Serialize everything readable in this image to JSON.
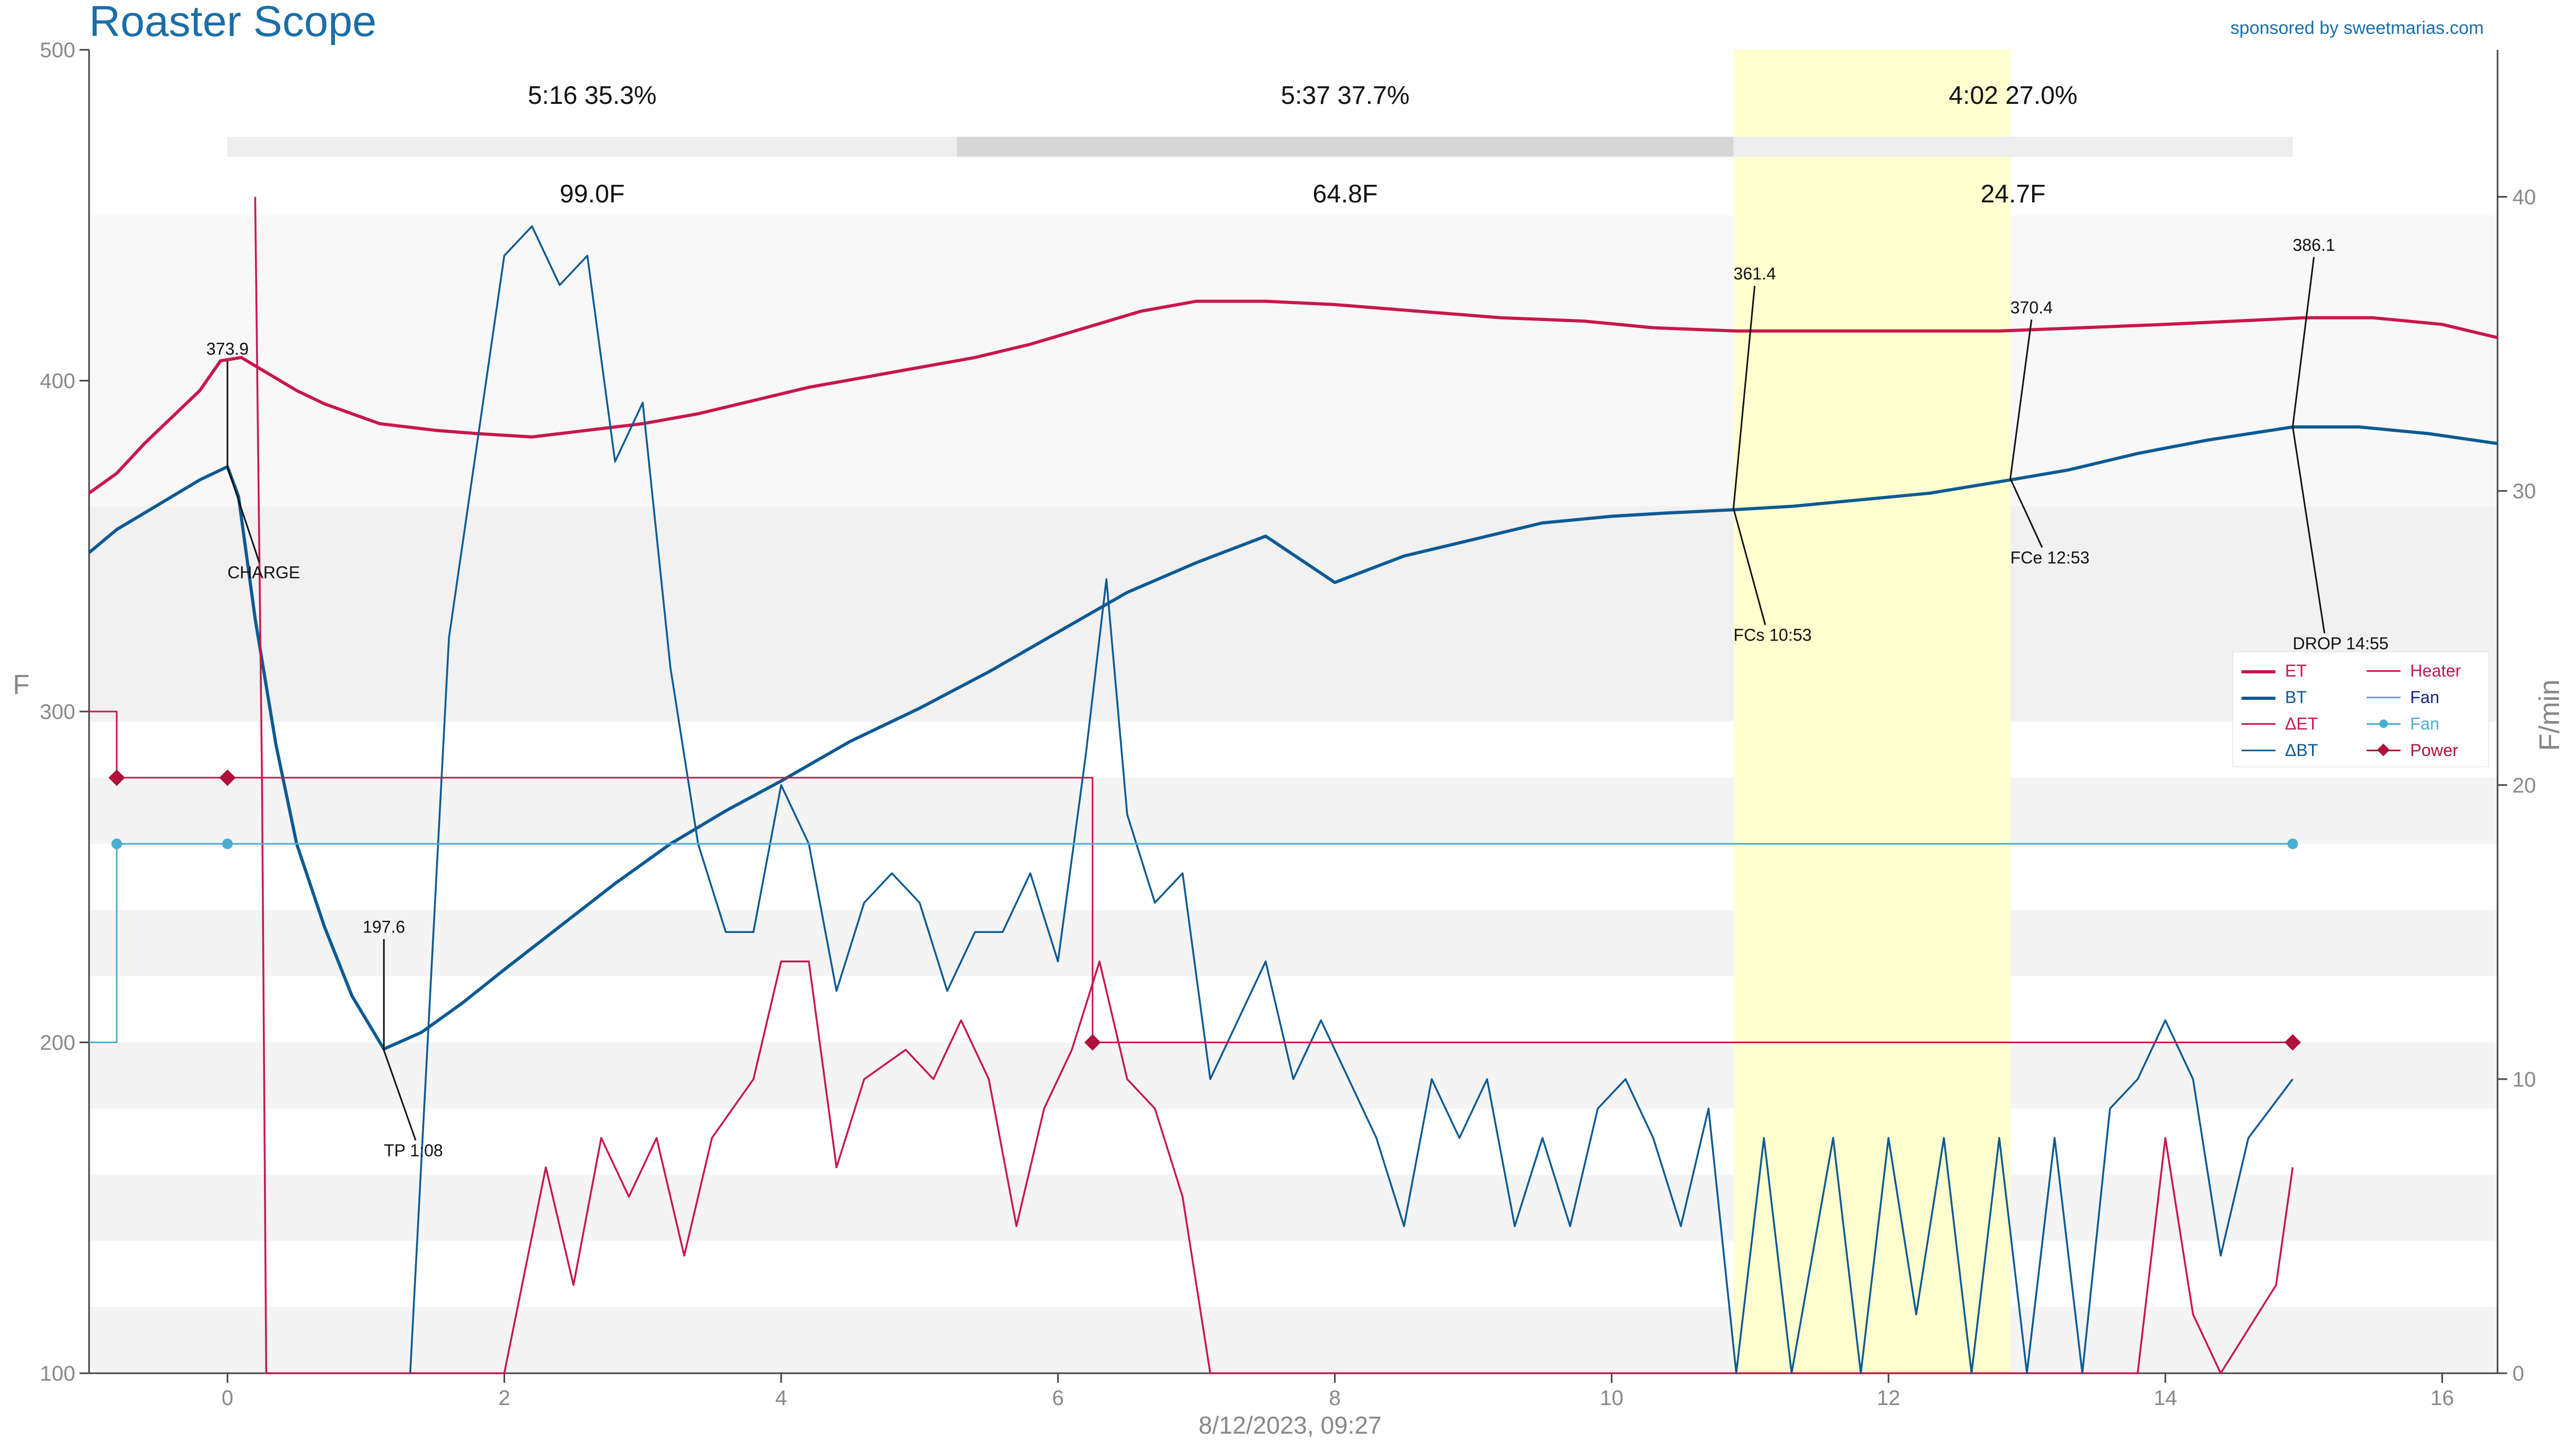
{
  "header": {
    "title": "Roaster Scope",
    "sponsor": "sponsored by sweetmarias.com"
  },
  "chart_data": {
    "type": "line",
    "xlabel": "8/12/2023, 09:27",
    "ylabel": "F",
    "y2label": "F/min",
    "xlim": [
      -1,
      16.4
    ],
    "ylim": [
      100,
      500
    ],
    "y2lim": [
      0,
      45
    ],
    "x_ticks": [
      0,
      2,
      4,
      6,
      8,
      10,
      12,
      14,
      16
    ],
    "y_ticks": [
      100,
      200,
      300,
      400,
      500
    ],
    "y2_ticks": [
      0,
      10,
      20,
      30,
      40
    ],
    "grid": false,
    "legend_position": "right",
    "colors": {
      "ET": "#c8174d",
      "BT": "#0c5a93",
      "dET": "#c8174d",
      "dBT": "#0c5a93",
      "Heater": "#c8174d",
      "Fan": "#4aaecf",
      "Power": "#b0103c",
      "fc_band": "#ffffcc"
    },
    "phases": [
      {
        "label": "5:16  35.3%",
        "delta": "99.0F",
        "x_start": 0,
        "x_end": 5.27
      },
      {
        "label": "5:37  37.7%",
        "delta": "64.8F",
        "x_start": 5.27,
        "x_end": 10.88
      },
      {
        "label": "4:02  27.0%",
        "delta": "24.7F",
        "x_start": 10.88,
        "x_end": 14.92
      }
    ],
    "first_crack_band": {
      "x_start": 10.88,
      "x_end": 12.88
    },
    "events": [
      {
        "name": "CHARGE",
        "x": 0.0,
        "y": 373.9,
        "value_label": "373.9",
        "event_label": "CHARGE"
      },
      {
        "name": "TP",
        "x": 1.13,
        "y": 197.6,
        "value_label": "197.6",
        "event_label": "TP 1:08"
      },
      {
        "name": "FCs",
        "x": 10.88,
        "y": 361.4,
        "value_label": "361.4",
        "event_label": "FCs 10:53"
      },
      {
        "name": "FCe",
        "x": 12.88,
        "y": 370.4,
        "value_label": "370.4",
        "event_label": "FCe 12:53"
      },
      {
        "name": "DROP",
        "x": 14.92,
        "y": 386.1,
        "value_label": "386.1",
        "event_label": "DROP 14:55"
      }
    ],
    "legend": [
      {
        "name": "ET",
        "key": "ET",
        "style": "line",
        "bold": true
      },
      {
        "name": "BT",
        "key": "BT",
        "style": "line",
        "bold": true
      },
      {
        "name": "ΔET",
        "key": "dET",
        "style": "line",
        "bold": false
      },
      {
        "name": "ΔBT",
        "key": "dBT",
        "style": "line",
        "bold": false
      },
      {
        "name": "Heater",
        "key": "Heater",
        "style": "line",
        "bold": false
      },
      {
        "name": "Fan",
        "key": "Fan",
        "style": "line",
        "bold": false
      },
      {
        "name": "Fan",
        "key": "Fan",
        "style": "dot",
        "bold": false
      },
      {
        "name": "Power",
        "key": "Power",
        "style": "diamond",
        "bold": false
      }
    ],
    "series": [
      {
        "name": "ET",
        "axis": "left",
        "points": [
          [
            -1.0,
            366
          ],
          [
            -0.8,
            372
          ],
          [
            -0.6,
            381
          ],
          [
            -0.4,
            389
          ],
          [
            -0.2,
            397
          ],
          [
            -0.05,
            406
          ],
          [
            0.1,
            407
          ],
          [
            0.3,
            402
          ],
          [
            0.5,
            397
          ],
          [
            0.7,
            393
          ],
          [
            0.9,
            390
          ],
          [
            1.1,
            387
          ],
          [
            1.3,
            386
          ],
          [
            1.5,
            385
          ],
          [
            1.8,
            384
          ],
          [
            2.2,
            383
          ],
          [
            2.6,
            385
          ],
          [
            3.0,
            387
          ],
          [
            3.4,
            390
          ],
          [
            3.8,
            394
          ],
          [
            4.2,
            398
          ],
          [
            4.6,
            401
          ],
          [
            5.0,
            404
          ],
          [
            5.4,
            407
          ],
          [
            5.8,
            411
          ],
          [
            6.2,
            416
          ],
          [
            6.6,
            421
          ],
          [
            7.0,
            424
          ],
          [
            7.5,
            424
          ],
          [
            8.0,
            423
          ],
          [
            8.6,
            421
          ],
          [
            9.2,
            419
          ],
          [
            9.8,
            418
          ],
          [
            10.3,
            416
          ],
          [
            10.9,
            415
          ],
          [
            11.5,
            415
          ],
          [
            12.1,
            415
          ],
          [
            12.8,
            415
          ],
          [
            13.4,
            416
          ],
          [
            14.0,
            417
          ],
          [
            14.5,
            418
          ],
          [
            15.0,
            419
          ],
          [
            15.5,
            419
          ],
          [
            16.0,
            417
          ],
          [
            16.4,
            413
          ]
        ]
      },
      {
        "name": "BT",
        "axis": "left",
        "points": [
          [
            -1.0,
            348
          ],
          [
            -0.8,
            355
          ],
          [
            -0.6,
            360
          ],
          [
            -0.4,
            365
          ],
          [
            -0.2,
            370
          ],
          [
            0.0,
            374
          ],
          [
            0.08,
            365
          ],
          [
            0.2,
            328
          ],
          [
            0.35,
            290
          ],
          [
            0.5,
            260
          ],
          [
            0.7,
            235
          ],
          [
            0.9,
            214
          ],
          [
            1.13,
            198
          ],
          [
            1.4,
            203
          ],
          [
            1.7,
            212
          ],
          [
            2.0,
            222
          ],
          [
            2.4,
            235
          ],
          [
            2.8,
            248
          ],
          [
            3.2,
            260
          ],
          [
            3.6,
            270
          ],
          [
            4.0,
            279
          ],
          [
            4.5,
            291
          ],
          [
            5.0,
            301
          ],
          [
            5.5,
            312
          ],
          [
            6.0,
            324
          ],
          [
            6.5,
            336
          ],
          [
            7.0,
            345
          ],
          [
            7.5,
            353
          ],
          [
            8.0,
            339
          ],
          [
            8.5,
            347
          ],
          [
            9.0,
            352
          ],
          [
            9.5,
            357
          ],
          [
            10.0,
            359
          ],
          [
            10.4,
            360
          ],
          [
            10.88,
            361
          ],
          [
            11.3,
            362
          ],
          [
            11.8,
            364
          ],
          [
            12.3,
            366
          ],
          [
            12.88,
            370
          ],
          [
            13.3,
            373
          ],
          [
            13.8,
            378
          ],
          [
            14.3,
            382
          ],
          [
            14.92,
            386
          ],
          [
            15.4,
            386
          ],
          [
            15.9,
            384
          ],
          [
            16.4,
            381
          ]
        ]
      },
      {
        "name": "ΔET",
        "axis": "right",
        "points": [
          [
            0.2,
            40
          ],
          [
            0.25,
            20
          ],
          [
            0.28,
            0
          ],
          [
            2.0,
            0
          ],
          [
            2.3,
            7
          ],
          [
            2.5,
            3
          ],
          [
            2.7,
            8
          ],
          [
            2.9,
            6
          ],
          [
            3.1,
            8
          ],
          [
            3.3,
            4
          ],
          [
            3.5,
            8
          ],
          [
            3.8,
            10
          ],
          [
            4.0,
            14
          ],
          [
            4.2,
            14
          ],
          [
            4.4,
            7
          ],
          [
            4.6,
            10
          ],
          [
            4.9,
            11
          ],
          [
            5.1,
            10
          ],
          [
            5.3,
            12
          ],
          [
            5.5,
            10
          ],
          [
            5.7,
            5
          ],
          [
            5.9,
            9
          ],
          [
            6.1,
            11
          ],
          [
            6.3,
            14
          ],
          [
            6.5,
            10
          ],
          [
            6.7,
            9
          ],
          [
            6.9,
            6
          ],
          [
            7.1,
            0
          ],
          [
            10.0,
            0
          ],
          [
            13.8,
            0
          ],
          [
            14.0,
            8
          ],
          [
            14.2,
            2
          ],
          [
            14.4,
            0
          ],
          [
            14.8,
            3
          ],
          [
            14.92,
            7
          ]
        ]
      },
      {
        "name": "ΔBT",
        "axis": "right",
        "points": [
          [
            1.32,
            0
          ],
          [
            1.6,
            25
          ],
          [
            2.0,
            38
          ],
          [
            2.2,
            39
          ],
          [
            2.4,
            37
          ],
          [
            2.6,
            38
          ],
          [
            2.8,
            31
          ],
          [
            3.0,
            33
          ],
          [
            3.2,
            24
          ],
          [
            3.4,
            18
          ],
          [
            3.6,
            15
          ],
          [
            3.8,
            15
          ],
          [
            4.0,
            20
          ],
          [
            4.2,
            18
          ],
          [
            4.4,
            13
          ],
          [
            4.6,
            16
          ],
          [
            4.8,
            17
          ],
          [
            5.0,
            16
          ],
          [
            5.2,
            13
          ],
          [
            5.4,
            15
          ],
          [
            5.6,
            15
          ],
          [
            5.8,
            17
          ],
          [
            6.0,
            14
          ],
          [
            6.2,
            21
          ],
          [
            6.35,
            27
          ],
          [
            6.5,
            19
          ],
          [
            6.7,
            16
          ],
          [
            6.9,
            17
          ],
          [
            7.1,
            10
          ],
          [
            7.3,
            12
          ],
          [
            7.5,
            14
          ],
          [
            7.7,
            10
          ],
          [
            7.9,
            12
          ],
          [
            8.1,
            10
          ],
          [
            8.3,
            8
          ],
          [
            8.5,
            5
          ],
          [
            8.7,
            10
          ],
          [
            8.9,
            8
          ],
          [
            9.1,
            10
          ],
          [
            9.3,
            5
          ],
          [
            9.5,
            8
          ],
          [
            9.7,
            5
          ],
          [
            9.9,
            9
          ],
          [
            10.1,
            10
          ],
          [
            10.3,
            8
          ],
          [
            10.5,
            5
          ],
          [
            10.7,
            9
          ],
          [
            10.9,
            0
          ],
          [
            11.1,
            8
          ],
          [
            11.3,
            0
          ],
          [
            11.6,
            8
          ],
          [
            11.8,
            0
          ],
          [
            12.0,
            8
          ],
          [
            12.2,
            2
          ],
          [
            12.4,
            8
          ],
          [
            12.6,
            0
          ],
          [
            12.8,
            8
          ],
          [
            13.0,
            0
          ],
          [
            13.2,
            8
          ],
          [
            13.4,
            0
          ],
          [
            13.6,
            9
          ],
          [
            13.8,
            10
          ],
          [
            14.0,
            12
          ],
          [
            14.2,
            10
          ],
          [
            14.4,
            4
          ],
          [
            14.6,
            8
          ],
          [
            14.92,
            10
          ]
        ]
      },
      {
        "name": "Heater",
        "axis": "left",
        "points": [
          [
            -1.0,
            300
          ],
          [
            -0.8,
            300
          ],
          [
            -0.8,
            280
          ],
          [
            6.25,
            280
          ],
          [
            6.25,
            200
          ],
          [
            14.92,
            200
          ]
        ]
      },
      {
        "name": "Fan",
        "axis": "left",
        "points": [
          [
            -1.0,
            200
          ],
          [
            -0.8,
            200
          ],
          [
            -0.8,
            260
          ],
          [
            14.92,
            260
          ]
        ]
      },
      {
        "name": "Power",
        "axis": "left",
        "points": [
          [
            -0.8,
            280
          ],
          [
            0.0,
            280
          ],
          [
            6.25,
            200
          ],
          [
            14.92,
            200
          ]
        ]
      },
      {
        "name": "Fan",
        "axis": "left",
        "points": [
          [
            -0.8,
            260
          ],
          [
            0.0,
            260
          ],
          [
            14.92,
            260
          ]
        ]
      }
    ]
  }
}
